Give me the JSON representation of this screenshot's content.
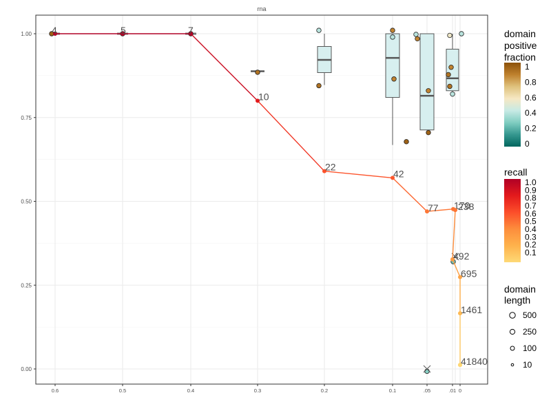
{
  "chart_data": {
    "type": "line",
    "title": "rna",
    "xlabel": "",
    "ylabel": "",
    "ylim": [
      0,
      1
    ],
    "x_tick_labels": [
      "0.6",
      "0.5",
      "0.4",
      "0.3",
      "0.2",
      "0.1",
      ".05",
      ".01",
      "0"
    ],
    "y_tick_labels": [
      "0.00",
      "0.25",
      "0.50",
      "0.75",
      "1.00"
    ],
    "grid": true,
    "series": [
      {
        "x": [
          "0.6",
          "0.5",
          "0.4",
          "0.3",
          "0.2",
          "0.1",
          ".05",
          ".02",
          ".015",
          ".01",
          ".005",
          ".005",
          ".005",
          ".005"
        ],
        "y": [
          1.0,
          1.0,
          1.0,
          0.8,
          0.59,
          0.57,
          0.47,
          0.477,
          0.474,
          0.327,
          0.274,
          0.166,
          0.012,
          0.012
        ],
        "labels": [
          "4",
          "5",
          "7",
          "10",
          "22",
          "42",
          "77",
          "170",
          "238",
          "492",
          "695",
          "1461",
          "41840",
          ""
        ]
      }
    ],
    "boxplots": [
      {
        "x": "0.3",
        "q1": 0.888,
        "median": 0.888,
        "q3": 0.888,
        "min": 0.888,
        "max": 0.888
      },
      {
        "x": "0.2",
        "q1": 0.884,
        "median": 0.922,
        "q3": 0.962,
        "min": 0.847,
        "max": 1.0
      },
      {
        "x": "0.1",
        "q1": 0.81,
        "median": 0.928,
        "q3": 1.0,
        "min": 0.668,
        "max": 1.0
      },
      {
        "x": ".05",
        "q1": 0.713,
        "median": 0.815,
        "q3": 1.0,
        "min": 0.713,
        "max": 1.0
      },
      {
        "x": ".01",
        "q1": 0.83,
        "median": 0.867,
        "q3": 0.954,
        "min": 0.82,
        "max": 1.0
      }
    ],
    "points": [
      {
        "x": "0.6",
        "y": 1.0,
        "fraction": 0.95
      },
      {
        "x": "0.5",
        "y": 1.0,
        "fraction": 0.7
      },
      {
        "x": "0.4",
        "y": 1.0,
        "fraction": 0.9
      },
      {
        "x": "0.3",
        "y": 0.885,
        "fraction": 0.9
      },
      {
        "x": "0.2",
        "y": 1.01,
        "fraction": 0.4
      },
      {
        "x": "0.2",
        "y": 0.845,
        "fraction": 0.9
      },
      {
        "x": "0.1",
        "y": 1.01,
        "fraction": 0.85
      },
      {
        "x": "0.1",
        "y": 0.99,
        "fraction": 0.4
      },
      {
        "x": "0.1",
        "y": 0.865,
        "fraction": 0.85
      },
      {
        "x": "0.1",
        "y": 0.678,
        "fraction": 0.95
      },
      {
        "x": ".05",
        "y": 0.998,
        "fraction": 0.4
      },
      {
        "x": ".05",
        "y": 0.985,
        "fraction": 0.85
      },
      {
        "x": ".05",
        "y": 0.83,
        "fraction": 0.85
      },
      {
        "x": ".05",
        "y": 0.705,
        "fraction": 0.95
      },
      {
        "x": ".05",
        "y": -0.007,
        "fraction": 0.3
      },
      {
        "x": ".01",
        "y": 0.995,
        "fraction": 0.55
      },
      {
        "x": ".01",
        "y": 0.9,
        "fraction": 0.85
      },
      {
        "x": ".01",
        "y": 0.878,
        "fraction": 0.9
      },
      {
        "x": ".01",
        "y": 0.843,
        "fraction": 0.9
      },
      {
        "x": ".01",
        "y": 0.82,
        "fraction": 0.4
      },
      {
        "x": "0",
        "y": 1.0,
        "fraction": 0.4
      },
      {
        "x": ".02",
        "y": 0.32,
        "fraction": 0.25
      }
    ],
    "crosses": [
      {
        "x": ".05",
        "y": 0.0
      },
      {
        "x": ".015",
        "y": 0.335
      }
    ],
    "legend": {
      "position": "right",
      "fraction_title": [
        "domain",
        "positive",
        "fraction"
      ],
      "fraction_ticks": [
        "1",
        "0.8",
        "0.6",
        "0.4",
        "0.2",
        "0"
      ],
      "fraction_colors": [
        "#8c510a",
        "#bf812d",
        "#dfc27d",
        "#f6e8c3",
        "#c7eae5",
        "#80cdc1",
        "#35978f",
        "#01665e"
      ],
      "recall_title": "recall",
      "recall_ticks": [
        "1.0",
        "0.9",
        "0.8",
        "0.7",
        "0.6",
        "0.5",
        "0.4",
        "0.3",
        "0.2",
        "0.1"
      ],
      "recall_colors": [
        "#b10026",
        "#e31a1c",
        "#fc4e2a",
        "#fd8d3c",
        "#feb24c",
        "#fed976"
      ],
      "length_title": [
        "domain",
        "length"
      ],
      "length_values": [
        "500",
        "250",
        "100",
        "10"
      ]
    }
  }
}
